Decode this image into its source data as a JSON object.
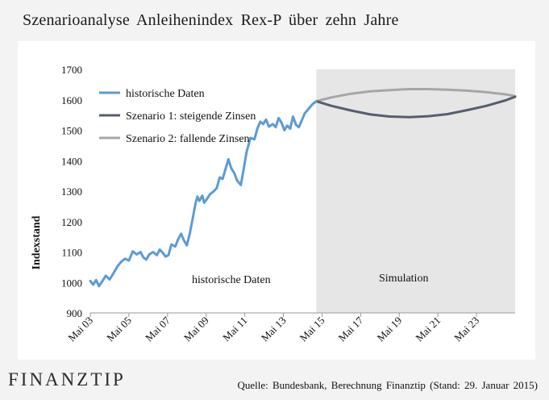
{
  "title": "Szenarioanalyse  Anleihenindex  Rex-P  über zehn Jahre",
  "brand": "FINANZTIP",
  "source": "Quelle:  Bundesbank,  Berechnung Finanztip  (Stand:  29.  Januar 2015)",
  "colors": {
    "historical": "#5b9bd5",
    "scenario_rising": "#555e6e",
    "scenario_falling": "#a6a6a6",
    "simulation_bg": "#e6e6e6",
    "background": "#f3f3f3"
  },
  "chart_data": {
    "type": "line",
    "ylabel": "Indexstand",
    "xlabel": "",
    "ylim": [
      900,
      1700
    ],
    "yticks": [
      900,
      1000,
      1100,
      1200,
      1300,
      1400,
      1500,
      1600,
      1700
    ],
    "xlim": [
      2003.0,
      2025.0
    ],
    "xticks": [
      {
        "value": 2003,
        "label": "Mai 03"
      },
      {
        "value": 2005,
        "label": "Mai 05"
      },
      {
        "value": 2007,
        "label": "Mai 07"
      },
      {
        "value": 2009,
        "label": "Mai 09"
      },
      {
        "value": 2011,
        "label": "Mai 11"
      },
      {
        "value": 2013,
        "label": "Mai 13"
      },
      {
        "value": 2015,
        "label": "Mai 15"
      },
      {
        "value": 2017,
        "label": "Mai 17"
      },
      {
        "value": 2019,
        "label": "Mai 19"
      },
      {
        "value": 2021,
        "label": "Mai 21"
      },
      {
        "value": 2023,
        "label": "Mai 23"
      }
    ],
    "grid": false,
    "legend_position": "top-left",
    "regions": [
      {
        "label": "historische Daten"
      },
      {
        "label": "Simulation",
        "from": 2014.7,
        "to": 2025.0
      }
    ],
    "series": [
      {
        "name": "historische Daten",
        "x": [
          2003.0,
          2003.15,
          2003.3,
          2003.45,
          2003.6,
          2003.8,
          2004.0,
          2004.2,
          2004.4,
          2004.6,
          2004.8,
          2005.0,
          2005.2,
          2005.4,
          2005.6,
          2005.75,
          2005.9,
          2006.05,
          2006.25,
          2006.45,
          2006.6,
          2006.75,
          2006.9,
          2007.05,
          2007.2,
          2007.4,
          2007.55,
          2007.7,
          2007.85,
          2008.0,
          2008.15,
          2008.3,
          2008.45,
          2008.55,
          2008.65,
          2008.8,
          2008.9,
          2009.05,
          2009.2,
          2009.4,
          2009.55,
          2009.7,
          2009.85,
          2010.0,
          2010.15,
          2010.3,
          2010.45,
          2010.6,
          2010.8,
          2010.95,
          2011.1,
          2011.3,
          2011.5,
          2011.65,
          2011.8,
          2011.95,
          2012.1,
          2012.25,
          2012.45,
          2012.6,
          2012.75,
          2012.9,
          2013.05,
          2013.2,
          2013.35,
          2013.5,
          2013.65,
          2013.8,
          2013.95,
          2014.1,
          2014.3,
          2014.5,
          2014.7
        ],
        "y": [
          1005,
          993,
          1008,
          988,
          1002,
          1022,
          1010,
          1030,
          1052,
          1068,
          1078,
          1072,
          1102,
          1092,
          1100,
          1082,
          1075,
          1092,
          1100,
          1090,
          1108,
          1098,
          1085,
          1090,
          1125,
          1118,
          1142,
          1160,
          1138,
          1122,
          1160,
          1210,
          1260,
          1282,
          1268,
          1285,
          1262,
          1275,
          1290,
          1300,
          1310,
          1345,
          1340,
          1372,
          1405,
          1375,
          1360,
          1335,
          1320,
          1375,
          1430,
          1475,
          1470,
          1505,
          1528,
          1520,
          1535,
          1512,
          1520,
          1510,
          1540,
          1525,
          1500,
          1515,
          1505,
          1545,
          1518,
          1510,
          1532,
          1555,
          1570,
          1585,
          1595
        ]
      },
      {
        "name": "Szenario 1: steigende Zinsen",
        "x": [
          2014.7,
          2015.5,
          2016.5,
          2017.5,
          2018.5,
          2019.5,
          2020.5,
          2021.5,
          2022.5,
          2023.5,
          2024.5,
          2025.0
        ],
        "y": [
          1595,
          1580,
          1565,
          1552,
          1545,
          1543,
          1546,
          1553,
          1566,
          1580,
          1598,
          1610
        ]
      },
      {
        "name": "Szenario 2: fallende Zinsen",
        "x": [
          2014.7,
          2015.5,
          2016.5,
          2017.5,
          2018.5,
          2019.5,
          2020.5,
          2021.5,
          2022.5,
          2023.5,
          2024.5,
          2025.0
        ],
        "y": [
          1595,
          1608,
          1620,
          1628,
          1632,
          1635,
          1635,
          1633,
          1630,
          1625,
          1618,
          1612
        ]
      }
    ]
  }
}
